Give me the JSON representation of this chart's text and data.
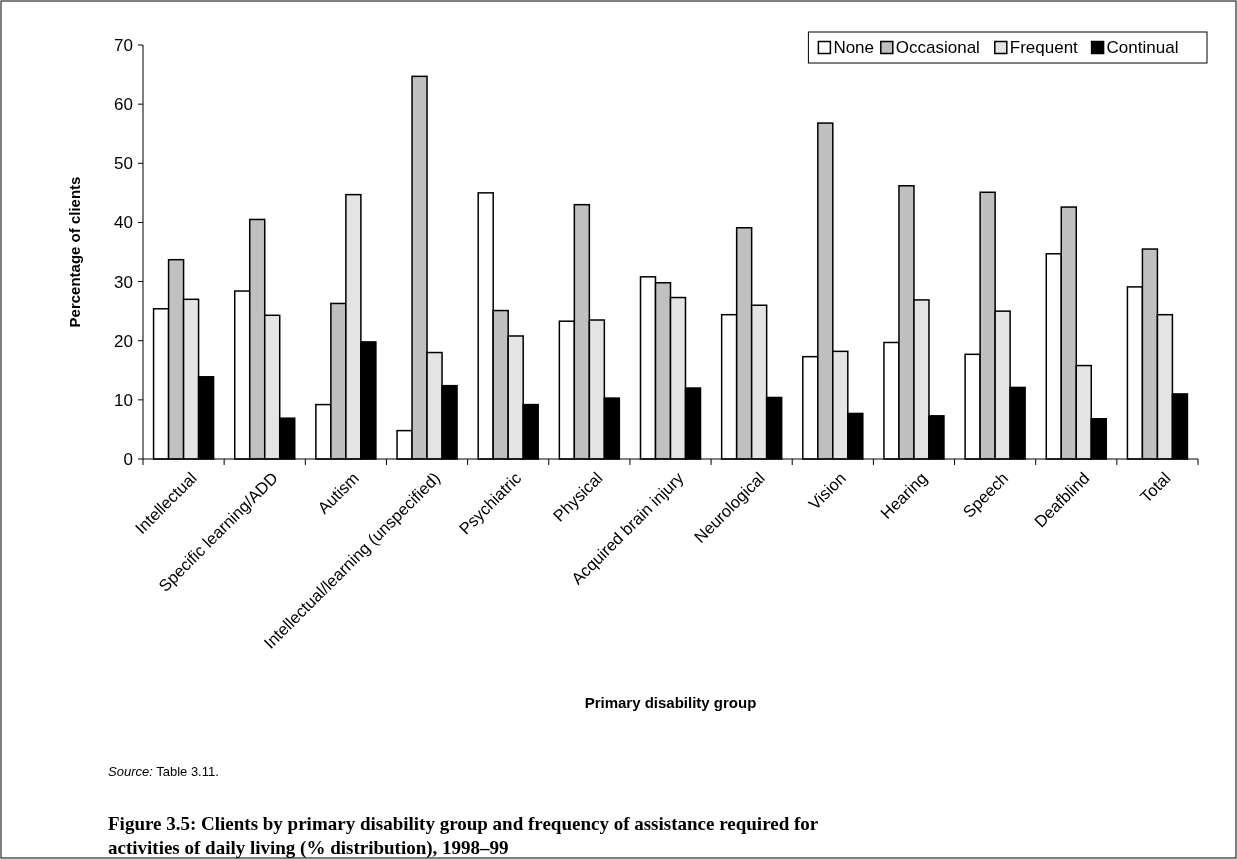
{
  "chart_data": {
    "type": "bar",
    "title": "Figure 3.5: Clients by primary disability group and frequency of assistance required for activities of daily living (% distribution), 1998–99",
    "xlabel": "Primary disability group",
    "ylabel": "Percentage of clients",
    "annotations": [
      "Source: Table 3.11."
    ],
    "categories": [
      "Intellectual",
      "Specific learning/ADD",
      "Autism",
      "Intellectual/learning (unspecified)",
      "Psychiatric",
      "Physical",
      "Acquired brain injury",
      "Neurological",
      "Vision",
      "Hearing",
      "Speech",
      "Deafblind",
      "Total"
    ],
    "series": [
      {
        "name": "None",
        "color": "#ffffff",
        "values": [
          25.4,
          28.4,
          9.2,
          4.8,
          45.0,
          23.3,
          30.8,
          24.4,
          17.3,
          19.7,
          17.7,
          34.7,
          29.1
        ]
      },
      {
        "name": "Occasional",
        "color": "#c0c0c0",
        "values": [
          33.7,
          40.5,
          26.3,
          64.7,
          25.1,
          43.0,
          29.8,
          39.1,
          56.8,
          46.2,
          45.1,
          42.6,
          35.5
        ]
      },
      {
        "name": "Frequent",
        "color": "#e4e4e4",
        "values": [
          27.0,
          24.3,
          44.7,
          18.0,
          20.8,
          23.5,
          27.3,
          26.0,
          18.2,
          26.9,
          25.0,
          15.8,
          24.4
        ]
      },
      {
        "name": "Continual",
        "color": "#000000",
        "values": [
          13.9,
          6.9,
          19.8,
          12.4,
          9.2,
          10.3,
          12.0,
          10.4,
          7.7,
          7.3,
          12.1,
          6.8,
          11.0
        ]
      }
    ],
    "ylim": [
      0,
      70
    ],
    "yticks": [
      0,
      10,
      20,
      30,
      40,
      50,
      60,
      70
    ],
    "grid": false,
    "legend": "top right"
  }
}
